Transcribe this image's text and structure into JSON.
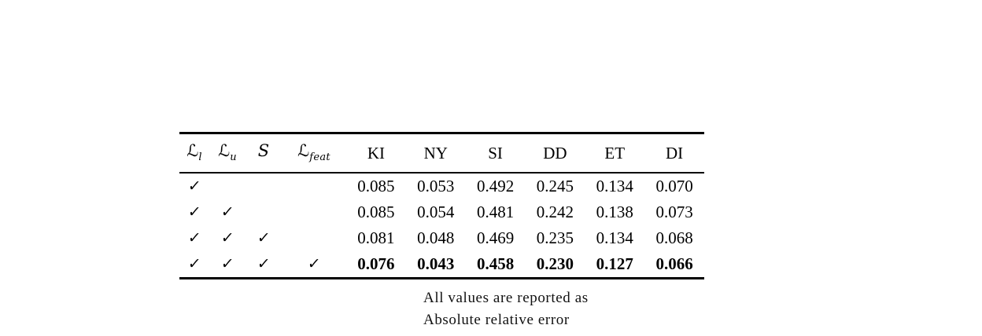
{
  "table": {
    "symbol_columns": [
      {
        "symbol": "ℒ",
        "subscript": "l"
      },
      {
        "symbol": "ℒ",
        "subscript": "u"
      },
      {
        "symbol": "S",
        "subscript": ""
      },
      {
        "symbol": "ℒ",
        "subscript": "feat"
      }
    ],
    "dataset_columns": [
      "KI",
      "NY",
      "SI",
      "DD",
      "ET",
      "DI"
    ],
    "rows": [
      {
        "checks": [
          "✓",
          "",
          "",
          ""
        ],
        "values": [
          "0.085",
          "0.053",
          "0.492",
          "0.245",
          "0.134",
          "0.070"
        ]
      },
      {
        "checks": [
          "✓",
          "✓",
          "",
          ""
        ],
        "values": [
          "0.085",
          "0.054",
          "0.481",
          "0.242",
          "0.138",
          "0.073"
        ]
      },
      {
        "checks": [
          "✓",
          "✓",
          "✓",
          ""
        ],
        "values": [
          "0.081",
          "0.048",
          "0.469",
          "0.235",
          "0.134",
          "0.068"
        ]
      },
      {
        "checks": [
          "✓",
          "✓",
          "✓",
          "✓"
        ],
        "values": [
          "0.076",
          "0.043",
          "0.458",
          "0.230",
          "0.127",
          "0.066"
        ]
      }
    ]
  },
  "chart_data": {
    "type": "table",
    "title": "",
    "columns": [
      "L_l",
      "L_u",
      "S",
      "L_feat",
      "KI",
      "NY",
      "SI",
      "DD",
      "ET",
      "DI"
    ],
    "rows": [
      [
        "✓",
        "",
        "",
        "",
        0.085,
        0.053,
        0.492,
        0.245,
        0.134,
        0.07
      ],
      [
        "✓",
        "✓",
        "",
        "",
        0.085,
        0.054,
        0.481,
        0.242,
        0.138,
        0.073
      ],
      [
        "✓",
        "✓",
        "✓",
        "",
        0.081,
        0.048,
        0.469,
        0.235,
        0.134,
        0.068
      ],
      [
        "✓",
        "✓",
        "✓",
        "✓",
        0.076,
        0.043,
        0.458,
        0.23,
        0.127,
        0.066
      ]
    ],
    "bold_row_index": 3
  },
  "annotation": {
    "line1": "All values are reported as",
    "line2": "Absolute relative error"
  }
}
